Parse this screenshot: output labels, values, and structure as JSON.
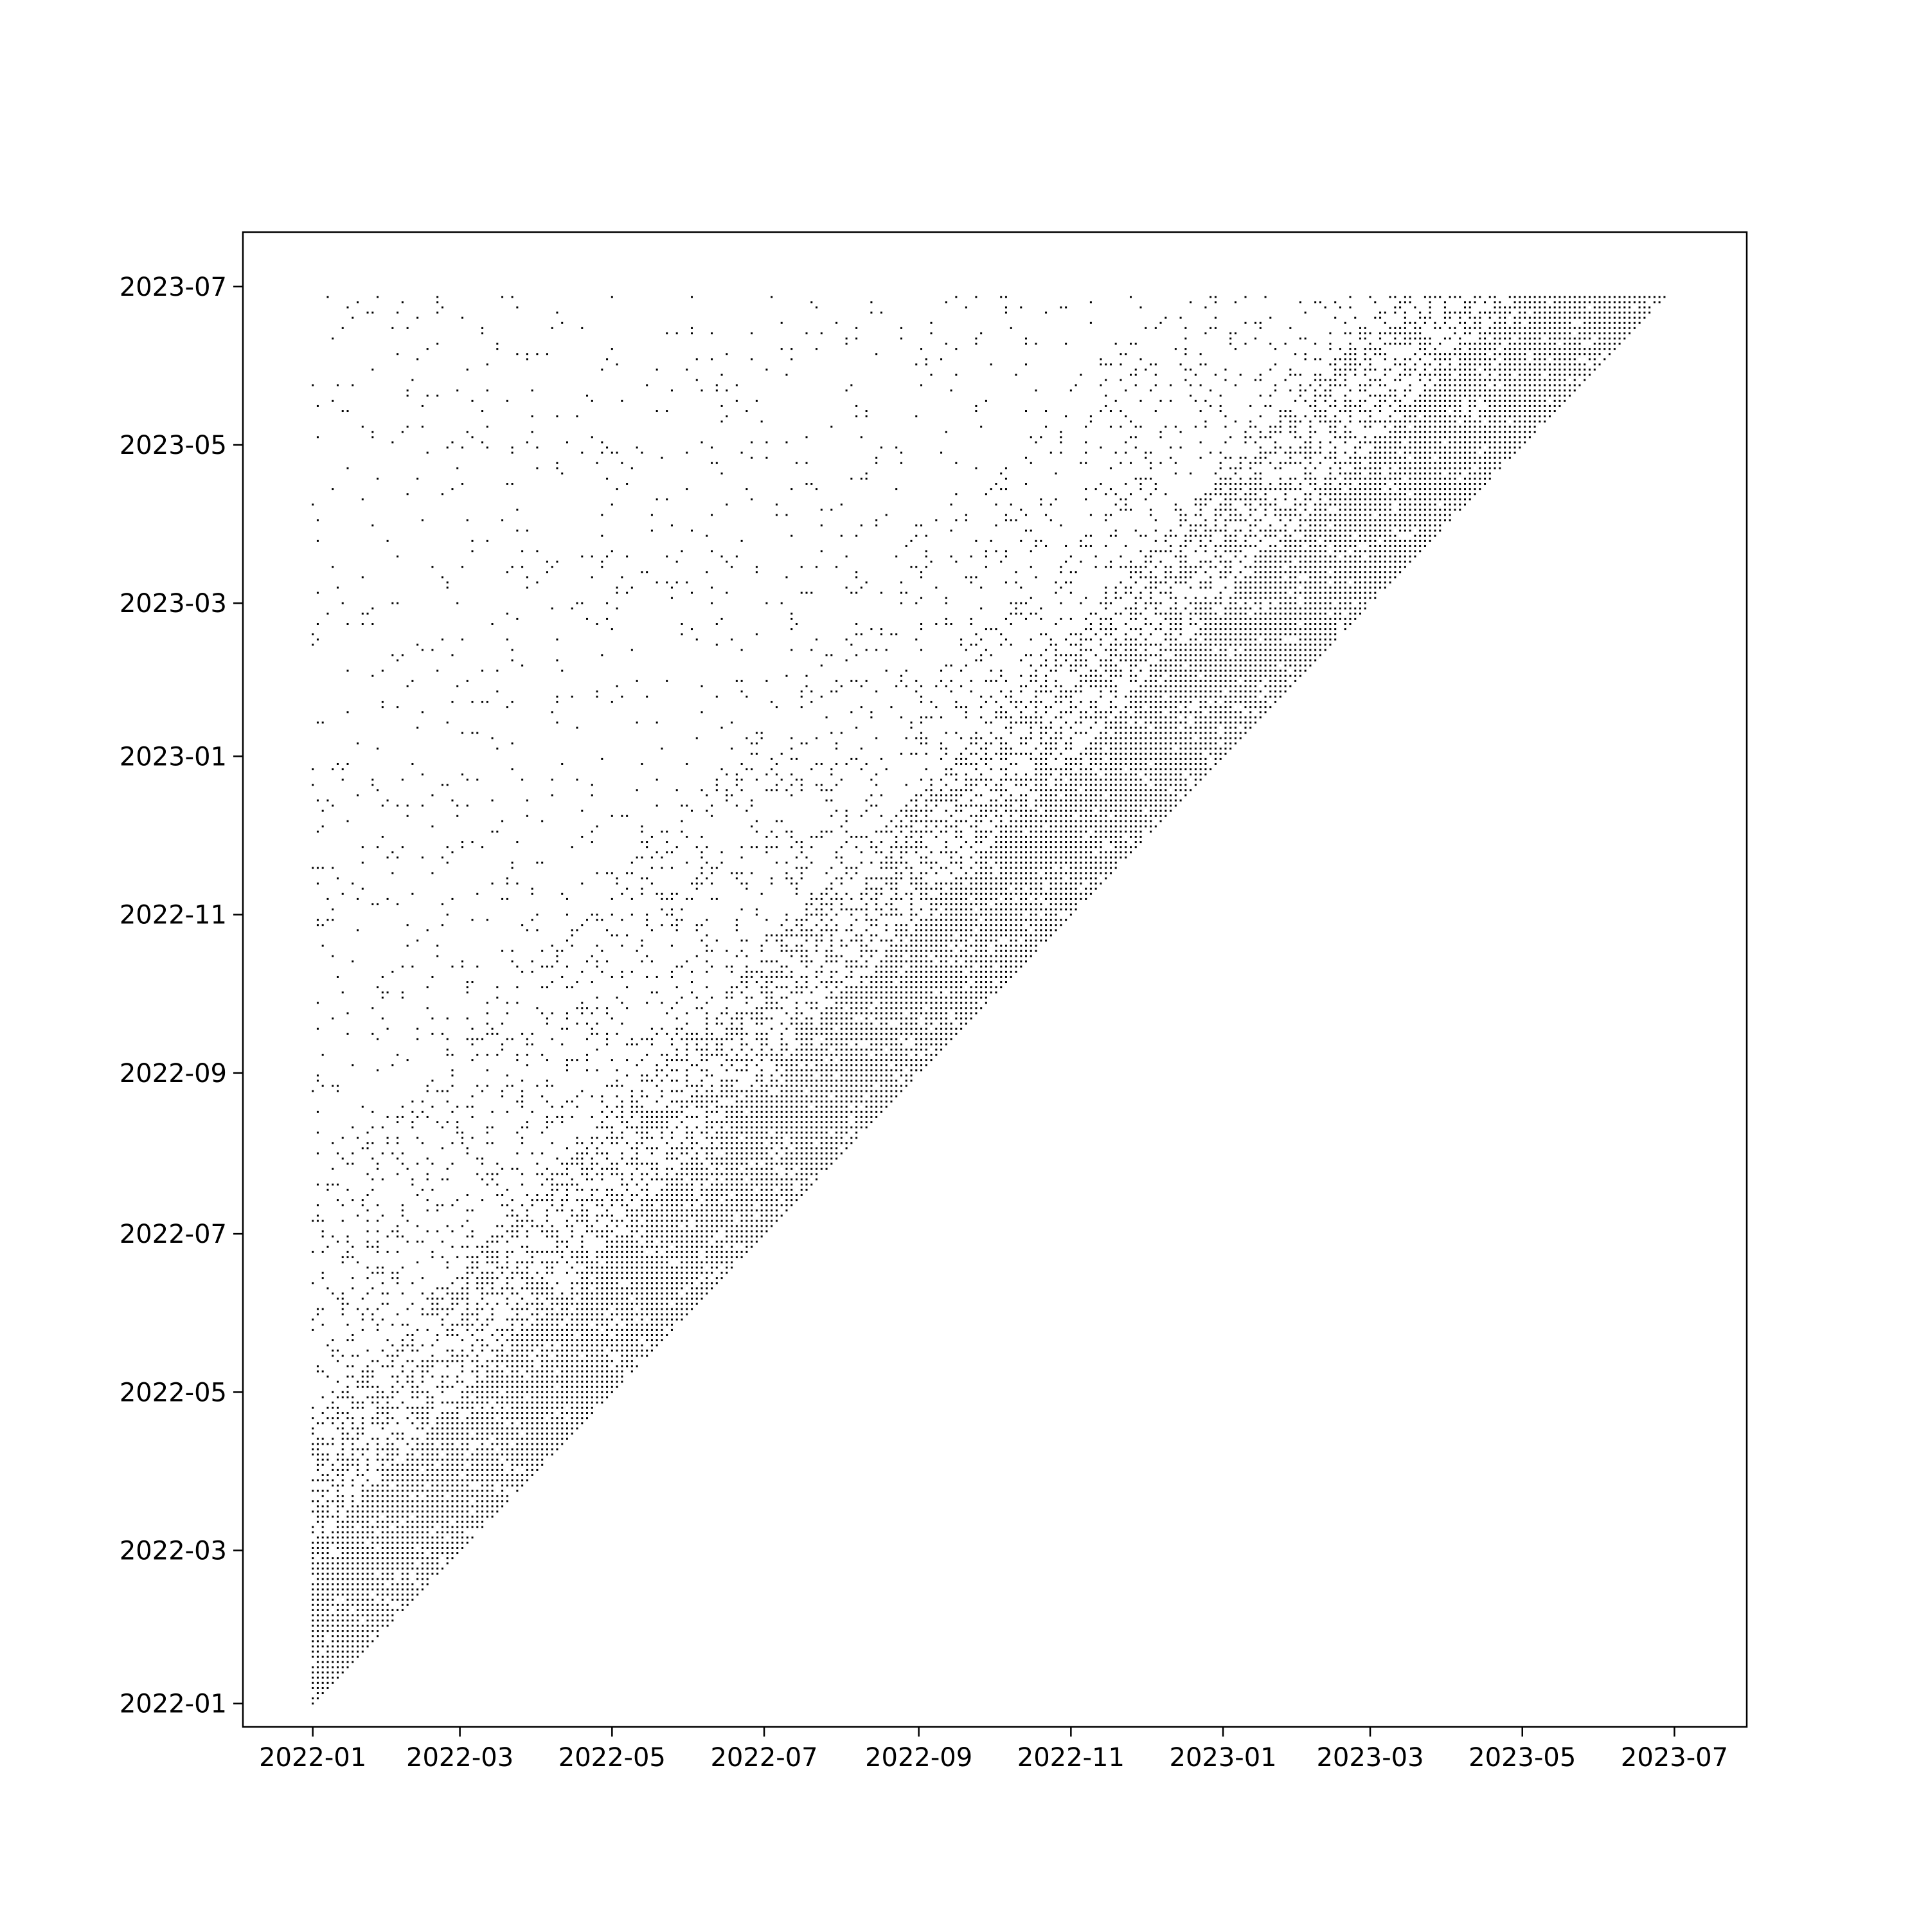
{
  "chart_data": {
    "type": "scatter",
    "title": "",
    "xlabel": "",
    "ylabel": "",
    "x_scale": "date",
    "y_scale": "date",
    "xlim": [
      "2021-12-04",
      "2023-07-30"
    ],
    "ylim": [
      "2021-12-23",
      "2023-07-22"
    ],
    "x_ticks": [
      "2022-01",
      "2022-03",
      "2022-05",
      "2022-07",
      "2022-09",
      "2022-11",
      "2023-01",
      "2023-03",
      "2023-05",
      "2023-07"
    ],
    "y_ticks": [
      "2022-01",
      "2022-03",
      "2022-05",
      "2022-07",
      "2022-09",
      "2022-11",
      "2023-01",
      "2023-03",
      "2023-05",
      "2023-07"
    ],
    "grid": false,
    "legend": "none",
    "marker_color": "#000000",
    "data_start": "2022-01-01",
    "data_end": "2023-06-28",
    "constraint": "y >= x",
    "series": [
      {
        "name": "",
        "points_x_range": [
          "2022-01-01",
          "2023-06-28"
        ],
        "points_y_range": [
          "2022-01-01",
          "2023-06-28"
        ],
        "density_note": "dense near diagonal, sparse far from it"
      }
    ]
  }
}
